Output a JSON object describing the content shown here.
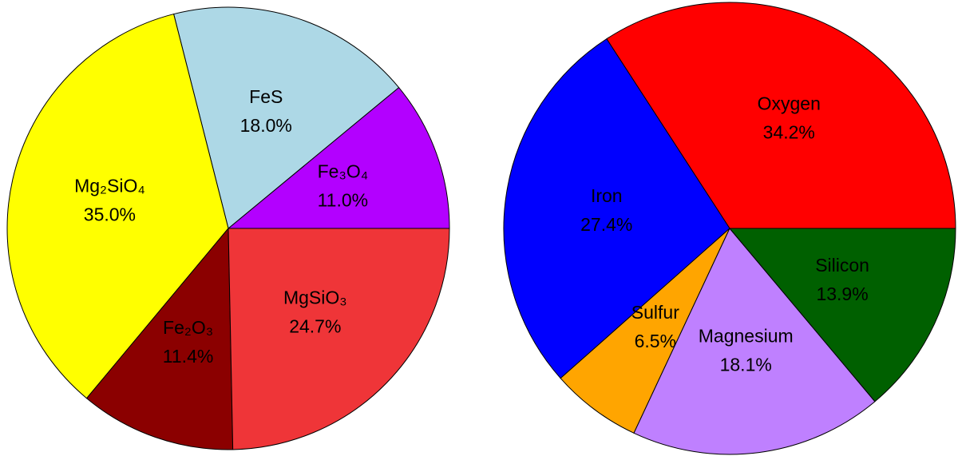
{
  "chart_data": [
    {
      "type": "pie",
      "categories": [
        "Fe₃O₄",
        "FeS",
        "Mg₂SiO₄",
        "Fe₂O₃",
        "MgSiO₃"
      ],
      "values": [
        11.0,
        18.0,
        35.0,
        11.4,
        24.7
      ],
      "value_labels": [
        "11.0%",
        "18.0%",
        "35.0%",
        "11.4%",
        "24.7%"
      ],
      "colors": [
        "#b300ff",
        "#add8e6",
        "#ffff00",
        "#8b0000",
        "#ef3538"
      ]
    },
    {
      "type": "pie",
      "categories": [
        "Oxygen",
        "Iron",
        "Sulfur",
        "Magnesium",
        "Silicon"
      ],
      "values": [
        34.2,
        27.4,
        6.5,
        18.1,
        13.9
      ],
      "value_labels": [
        "34.2%",
        "27.4%",
        "6.5%",
        "18.1%",
        "13.9%"
      ],
      "colors": [
        "#ff0000",
        "#0000ff",
        "#ffa500",
        "#bf80ff",
        "#006000"
      ]
    }
  ]
}
